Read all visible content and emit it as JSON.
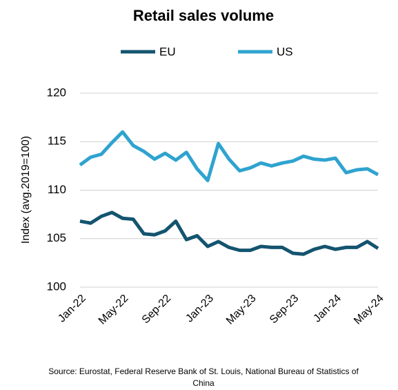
{
  "chart_data": {
    "type": "line",
    "title": "Retail sales volume",
    "y_label": "Index (avg.2019=100)",
    "source": "Source: Eurostat, Federal Reserve Bank of St. Louis, National Bureau of Statistics of China",
    "categories": [
      "Jan-22",
      null,
      null,
      null,
      "May-22",
      null,
      null,
      null,
      "Sep-22",
      null,
      null,
      null,
      "Jan-23",
      null,
      null,
      null,
      "May-23",
      null,
      null,
      null,
      "Sep-23",
      null,
      null,
      null,
      "Jan-24",
      null,
      null,
      null,
      "May-24"
    ],
    "series": [
      {
        "name": "EU",
        "color": "#14546f",
        "values": [
          106.8,
          106.6,
          107.3,
          107.7,
          107.1,
          107.0,
          105.5,
          105.4,
          105.8,
          106.8,
          104.9,
          105.3,
          104.2,
          104.7,
          104.1,
          103.8,
          103.8,
          104.2,
          104.1,
          104.1,
          103.5,
          103.4,
          103.9,
          104.2,
          103.9,
          104.1,
          104.1,
          104.7,
          104.0
        ]
      },
      {
        "name": "US",
        "color": "#2fa3cf",
        "values": [
          112.6,
          113.4,
          113.7,
          114.9,
          116.0,
          114.6,
          114.0,
          113.2,
          113.8,
          113.1,
          113.9,
          112.2,
          111.0,
          114.8,
          113.2,
          112.0,
          112.3,
          112.8,
          112.5,
          112.8,
          113.0,
          113.5,
          113.2,
          113.1,
          113.3,
          111.8,
          112.1,
          112.2,
          111.6
        ]
      }
    ],
    "ylim": [
      100,
      120
    ],
    "yticks": [
      100,
      105,
      110,
      115,
      120
    ],
    "grid": true,
    "legend": "top"
  }
}
